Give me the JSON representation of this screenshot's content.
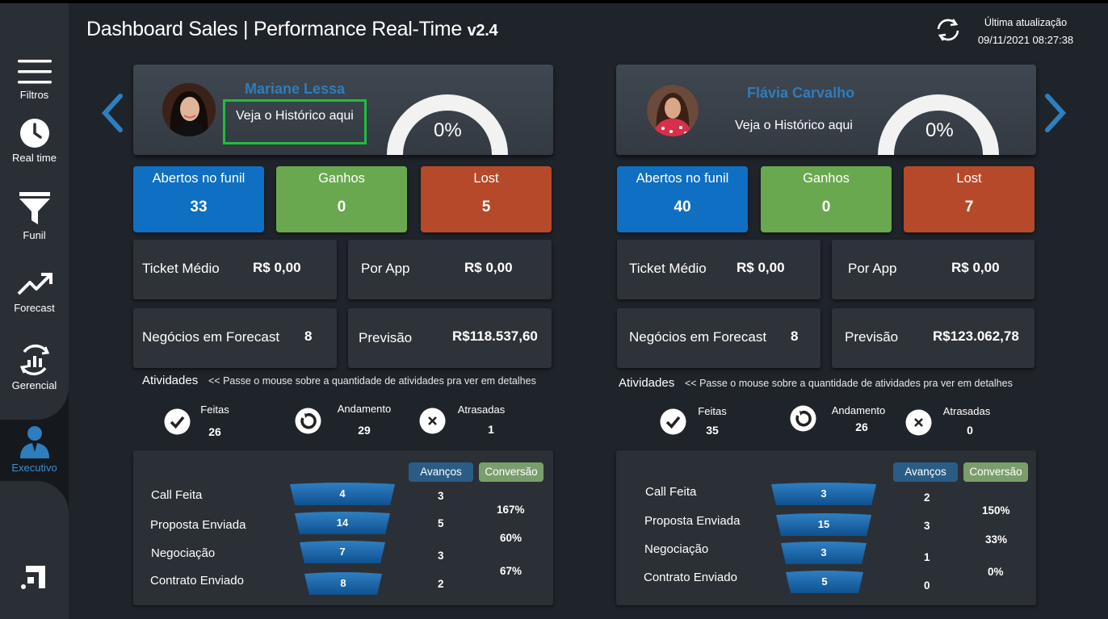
{
  "header": {
    "title_main": "Dashboard Sales",
    "separator": "|",
    "title_sub": "Performance Real-Time",
    "version": "v2.4",
    "update_label": "Última atualização",
    "update_value": "09/11/2021 08:27:38"
  },
  "sidebar": {
    "items": [
      {
        "label": "Filtros",
        "icon": "hamburger-icon"
      },
      {
        "label": "Real time",
        "icon": "clock-icon"
      },
      {
        "label": "Funil",
        "icon": "funnel-icon"
      },
      {
        "label": "Forecast",
        "icon": "trend-up-icon"
      },
      {
        "label": "Gerencial",
        "icon": "chart-refresh-icon"
      },
      {
        "label": "Executivo",
        "icon": "executive-user-icon"
      }
    ]
  },
  "activities_title": "Atividades",
  "activities_hint": "<< Passe o mouse sobre a quantidade de atividades  pra ver em detalhes",
  "labels": {
    "open": "Abertos no  funil",
    "won": "Ganhos",
    "lost": "Lost",
    "ticket": "Ticket Médio",
    "per_app": "Por App",
    "forecast_deals": "Negócios em Forecast",
    "prediction": "Previsão",
    "done": "Feitas",
    "progress": "Andamento",
    "late": "Atrasadas",
    "advances": "Avanços",
    "conversion": "Conversão",
    "history_link": "Veja o Histórico aqui"
  },
  "colors": {
    "tile_blue": "#0f6fc2",
    "tile_green": "#6aa84f",
    "tile_red": "#b6492a",
    "name_blue": "#2d7dbf",
    "highlight_green": "#1fbe3c"
  },
  "panels": [
    {
      "name": "Mariane Lessa",
      "gauge": "0%",
      "gauge_fraction": 0,
      "open": "33",
      "won": "0",
      "lost": "5",
      "ticket": "R$ 0,00",
      "per_app": "R$ 0,00",
      "forecast_deals": "8",
      "prediction": "R$118.537,60",
      "done": "26",
      "progress": "29",
      "late": "1",
      "funnel": [
        {
          "stage": "Call Feita",
          "value": "4",
          "advance": "3"
        },
        {
          "stage": "Proposta Enviada",
          "value": "14",
          "advance": "5"
        },
        {
          "stage": "Negociação",
          "value": "7",
          "advance": "3"
        },
        {
          "stage": "Contrato Enviado",
          "value": "8",
          "advance": "2"
        }
      ],
      "conversions": [
        "167%",
        "60%",
        "67%"
      ]
    },
    {
      "name": "Flávia Carvalho",
      "gauge": "0%",
      "gauge_fraction": 0,
      "open": "40",
      "won": "0",
      "lost": "7",
      "ticket": "R$ 0,00",
      "per_app": "R$ 0,00",
      "forecast_deals": "8",
      "prediction": "R$123.062,78",
      "done": "35",
      "progress": "26",
      "late": "0",
      "funnel": [
        {
          "stage": "Call Feita",
          "value": "3",
          "advance": "2"
        },
        {
          "stage": "Proposta Enviada",
          "value": "15",
          "advance": "3"
        },
        {
          "stage": "Negociação",
          "value": "3",
          "advance": "1"
        },
        {
          "stage": "Contrato Enviado",
          "value": "5",
          "advance": "0"
        }
      ],
      "conversions": [
        "150%",
        "33%",
        "0%"
      ]
    }
  ]
}
